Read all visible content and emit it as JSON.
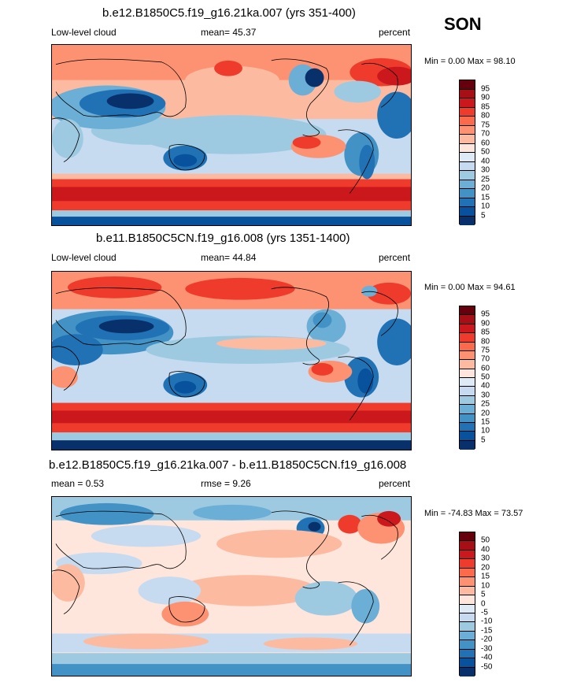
{
  "season": "SON",
  "panels": [
    {
      "title": "b.e12.B1850C5.f19_g16.21ka.007 (yrs 351-400)",
      "left_label": "Low-level cloud",
      "stat1": "mean=  45.37",
      "stat2": "",
      "units": "percent",
      "minmax": "Min =   0.00 Max =  98.10",
      "colorbar": {
        "labels": [
          "95",
          "90",
          "85",
          "80",
          "75",
          "70",
          "60",
          "50",
          "40",
          "30",
          "25",
          "20",
          "15",
          "10",
          "5"
        ],
        "colors": [
          "#67000d",
          "#a50f15",
          "#cb181d",
          "#ef3b2c",
          "#fb6a4a",
          "#fc9272",
          "#fcbba1",
          "#fee6dc",
          "#deebf7",
          "#c6dbef",
          "#9ecae1",
          "#6baed6",
          "#4292c6",
          "#2171b5",
          "#08519c",
          "#08306b"
        ]
      }
    },
    {
      "title": "b.e11.B1850C5CN.f19_g16.008 (yrs 1351-1400)",
      "left_label": "Low-level cloud",
      "stat1": "mean=  44.84",
      "stat2": "",
      "units": "percent",
      "minmax": "Min =   0.00 Max =  94.61",
      "colorbar": {
        "labels": [
          "95",
          "90",
          "85",
          "80",
          "75",
          "70",
          "60",
          "50",
          "40",
          "30",
          "25",
          "20",
          "15",
          "10",
          "5"
        ],
        "colors": [
          "#67000d",
          "#a50f15",
          "#cb181d",
          "#ef3b2c",
          "#fb6a4a",
          "#fc9272",
          "#fcbba1",
          "#fee6dc",
          "#deebf7",
          "#c6dbef",
          "#9ecae1",
          "#6baed6",
          "#4292c6",
          "#2171b5",
          "#08519c",
          "#08306b"
        ]
      }
    },
    {
      "title": "b.e12.B1850C5.f19_g16.21ka.007 - b.e11.B1850C5CN.f19_g16.008",
      "left_label": "mean =   0.53",
      "stat1": "",
      "stat2": "rmse =   9.26",
      "units": "percent",
      "minmax": "Min = -74.83 Max =  73.57",
      "colorbar": {
        "labels": [
          "50",
          "40",
          "30",
          "20",
          "15",
          "10",
          "5",
          "0",
          "-5",
          "-10",
          "-15",
          "-20",
          "-30",
          "-40",
          "-50"
        ],
        "colors": [
          "#67000d",
          "#a50f15",
          "#cb181d",
          "#ef3b2c",
          "#fb6a4a",
          "#fc9272",
          "#fcbba1",
          "#fee6dc",
          "#deebf7",
          "#c6dbef",
          "#9ecae1",
          "#6baed6",
          "#4292c6",
          "#2171b5",
          "#08519c",
          "#08306b"
        ]
      }
    }
  ],
  "chart_data": [
    {
      "type": "heatmap",
      "title": "b.e12.B1850C5.f19_g16.21ka.007 (yrs 351-400)",
      "variable": "Low-level cloud",
      "units": "percent",
      "mean": 45.37,
      "min": 0.0,
      "max": 98.1,
      "contour_levels": [
        5,
        10,
        15,
        20,
        25,
        30,
        40,
        50,
        60,
        70,
        75,
        80,
        85,
        90,
        95
      ]
    },
    {
      "type": "heatmap",
      "title": "b.e11.B1850C5CN.f19_g16.008 (yrs 1351-1400)",
      "variable": "Low-level cloud",
      "units": "percent",
      "mean": 44.84,
      "min": 0.0,
      "max": 94.61,
      "contour_levels": [
        5,
        10,
        15,
        20,
        25,
        30,
        40,
        50,
        60,
        70,
        75,
        80,
        85,
        90,
        95
      ]
    },
    {
      "type": "heatmap",
      "title": "b.e12.B1850C5.f19_g16.21ka.007 - b.e11.B1850C5CN.f19_g16.008",
      "units": "percent",
      "mean": 0.53,
      "rmse": 9.26,
      "min": -74.83,
      "max": 73.57,
      "contour_levels": [
        -50,
        -40,
        -30,
        -20,
        -15,
        -10,
        -5,
        0,
        5,
        10,
        15,
        20,
        30,
        40,
        50
      ]
    }
  ]
}
